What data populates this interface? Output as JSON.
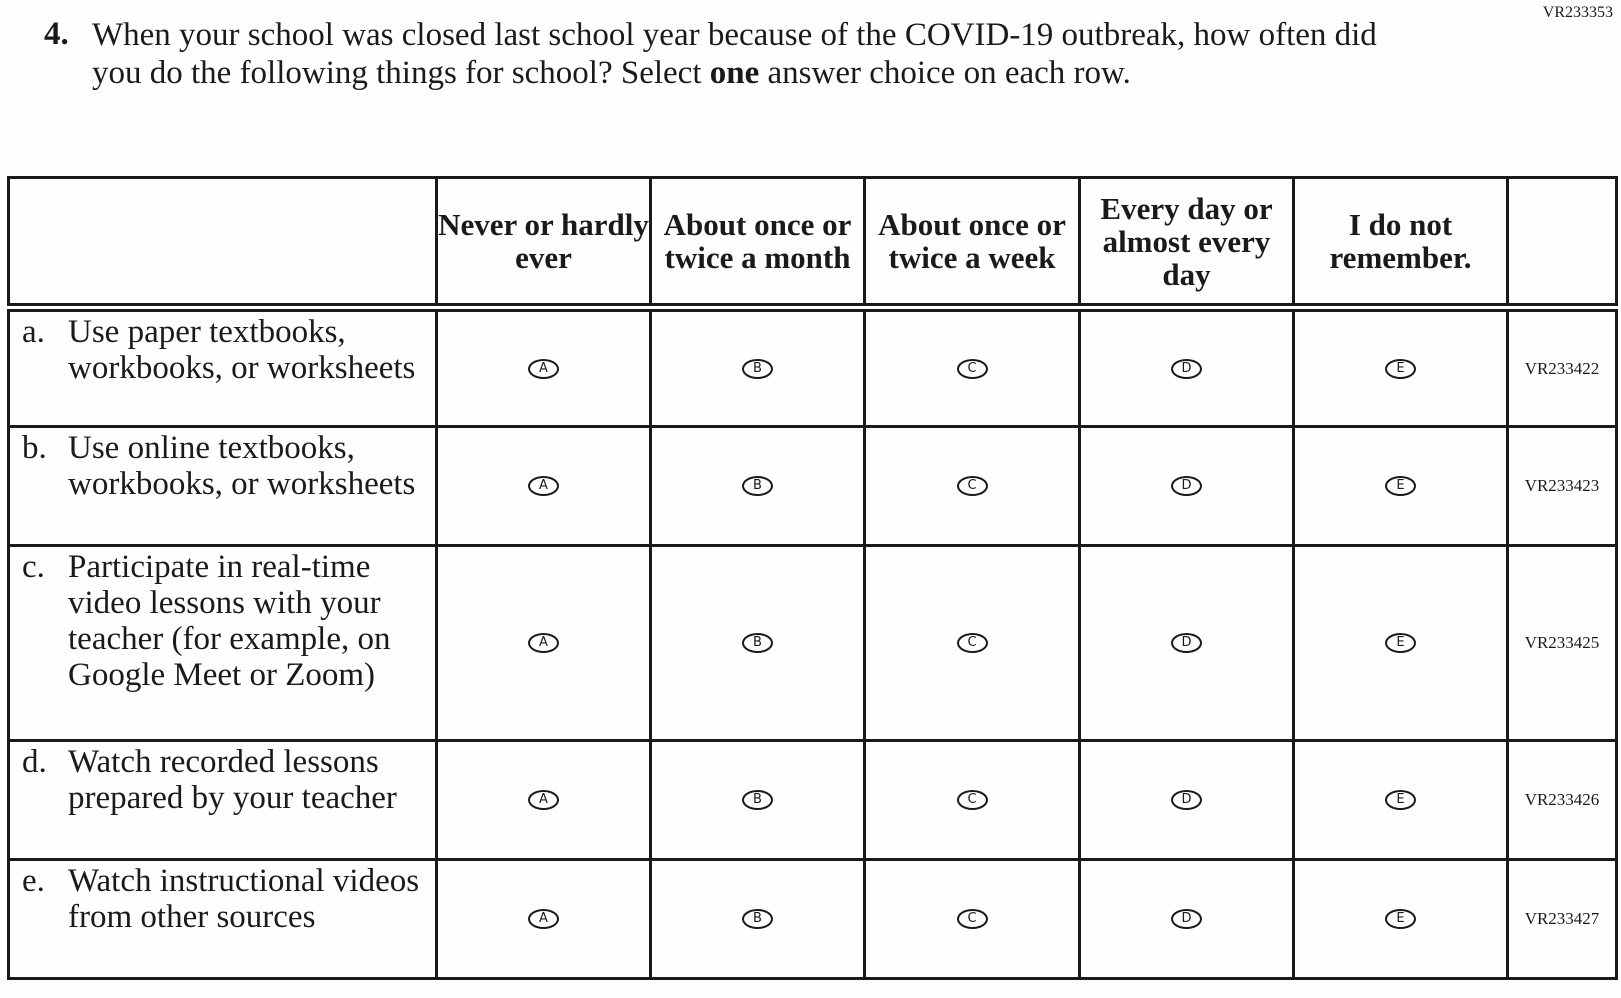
{
  "form_id": "VR233353",
  "question": {
    "number": "4.",
    "text_before": "When your school was closed last school year because of the COVID-19 outbreak, how often did you do the following things for school? Select ",
    "emphasis": "one",
    "text_after": " answer choice on each row."
  },
  "columns": [
    "Never or hardly ever",
    "About once or twice a month",
    "About once or twice a week",
    "Every day or almost every day",
    "I do not remember."
  ],
  "option_letters": [
    "A",
    "B",
    "C",
    "D",
    "E"
  ],
  "rows": [
    {
      "letter": "a.",
      "text": "Use paper textbooks, workbooks, or worksheets",
      "code": "VR233422"
    },
    {
      "letter": "b.",
      "text": "Use online textbooks, workbooks, or worksheets",
      "code": "VR233423"
    },
    {
      "letter": "c.",
      "text": "Participate in real-time video lessons with your teacher (for example, on Google Meet or Zoom)",
      "code": "VR233425"
    },
    {
      "letter": "d.",
      "text": "Watch recorded lessons prepared by your teacher",
      "code": "VR233426"
    },
    {
      "letter": "e.",
      "text": "Watch instructional videos from other sources",
      "code": "VR233427"
    }
  ]
}
